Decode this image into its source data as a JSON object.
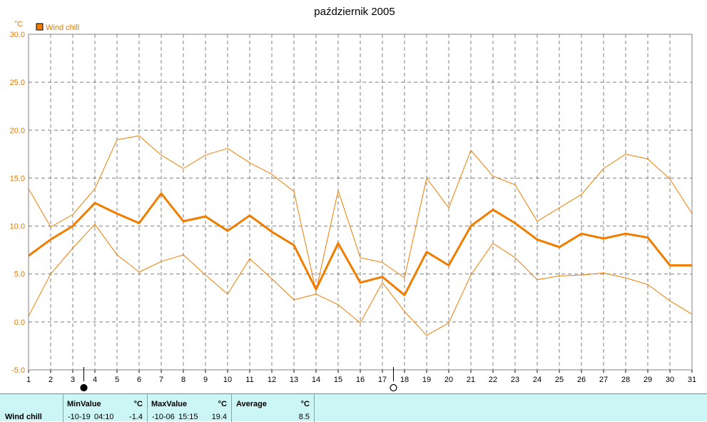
{
  "chart_data": {
    "type": "line",
    "title": "październik 2005",
    "unit": "°C",
    "x": [
      1,
      2,
      3,
      4,
      5,
      6,
      7,
      8,
      9,
      10,
      11,
      12,
      13,
      14,
      15,
      16,
      17,
      18,
      19,
      20,
      21,
      22,
      23,
      24,
      25,
      26,
      27,
      28,
      29,
      30,
      31
    ],
    "x_tick_labels": [
      "1",
      "2",
      "3",
      "4",
      "5",
      "6",
      "7",
      "8",
      "9",
      "10",
      "11",
      "12",
      "13",
      "14",
      "15",
      "16",
      "17",
      "18",
      "19",
      "20",
      "21",
      "22",
      "23",
      "24",
      "25",
      "26",
      "27",
      "28",
      "29",
      "30",
      "31"
    ],
    "ylim": [
      -5.0,
      30.0
    ],
    "y_ticks": [
      "-5.0",
      "0.0",
      "5.0",
      "10.0",
      "15.0",
      "20.0",
      "25.0",
      "30.0"
    ],
    "grid": true,
    "legend_position": "top-left",
    "series": [
      {
        "name": "Wind chill",
        "role": "average",
        "color": "#f07d00",
        "values": [
          6.9,
          8.6,
          10.0,
          12.4,
          11.3,
          10.3,
          13.4,
          10.5,
          11.0,
          9.5,
          11.1,
          9.4,
          8.0,
          3.4,
          8.2,
          4.1,
          4.7,
          2.8,
          7.3,
          5.9,
          10.0,
          11.7,
          10.3,
          8.6,
          7.8,
          9.2,
          8.7,
          9.2,
          8.8,
          5.9,
          5.9
        ]
      },
      {
        "role": "max",
        "color": "#f07d00",
        "values": [
          13.9,
          9.9,
          11.2,
          13.9,
          19.0,
          19.4,
          17.4,
          16.0,
          17.4,
          18.1,
          16.6,
          15.4,
          13.6,
          3.2,
          13.7,
          6.7,
          6.2,
          4.6,
          15.0,
          11.9,
          17.9,
          15.2,
          14.3,
          10.5,
          11.9,
          13.3,
          16.0,
          17.5,
          17.0,
          14.9,
          11.3
        ]
      },
      {
        "role": "min",
        "color": "#f07d00",
        "values": [
          0.6,
          5.0,
          7.7,
          10.2,
          7.0,
          5.2,
          6.3,
          7.0,
          4.9,
          2.9,
          6.6,
          4.5,
          2.3,
          2.9,
          1.8,
          -0.1,
          4.1,
          1.1,
          -1.4,
          -0.1,
          4.9,
          8.2,
          6.7,
          4.4,
          4.8,
          4.9,
          5.1,
          4.6,
          3.9,
          2.2,
          0.8
        ]
      }
    ],
    "markers": [
      {
        "symbol": "filled-circle",
        "x": 3.5
      },
      {
        "symbol": "open-circle",
        "x": 17.5
      }
    ]
  },
  "legend": {
    "label": "Wind chill",
    "color": "#f07d00"
  },
  "stats": {
    "row_label": "Wind chill",
    "min": {
      "header": "MinValue",
      "unit": "°C",
      "date": "-10-19",
      "time": "04:10",
      "value": "-1.4"
    },
    "max": {
      "header": "MaxValue",
      "unit": "°C",
      "date": "-10-06",
      "time": "15:15",
      "value": "19.4"
    },
    "avg": {
      "header": "Average",
      "unit": "°C",
      "value": "8.5"
    }
  }
}
